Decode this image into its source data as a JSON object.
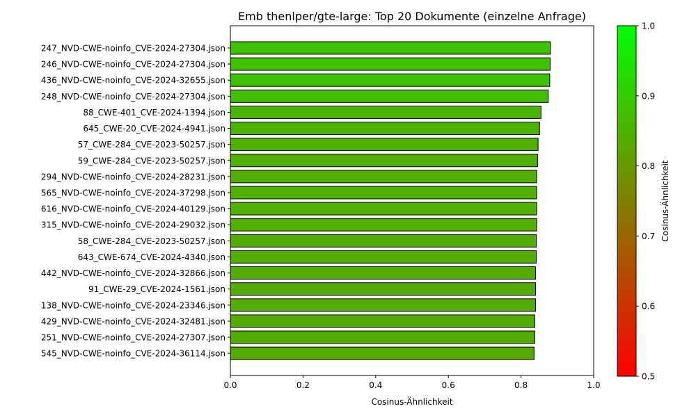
{
  "chart_data": {
    "type": "bar",
    "orientation": "horizontal",
    "title": "Emb thenlper/gte-large: Top 20 Dokumente (einzelne Anfrage)",
    "xlabel": "Cosinus-Ähnlichkeit",
    "ylabel": "",
    "xlim": [
      0,
      1
    ],
    "x_ticks": [
      "0.0",
      "0.2",
      "0.4",
      "0.6",
      "0.8",
      "1.0"
    ],
    "grid": false,
    "categories": [
      "247_NVD-CWE-noinfo_CVE-2024-27304.json",
      "246_NVD-CWE-noinfo_CVE-2024-27304.json",
      "436_NVD-CWE-noinfo_CVE-2024-32655.json",
      "248_NVD-CWE-noinfo_CVE-2024-27304.json",
      "88_CWE-401_CVE-2024-1394.json",
      "645_CWE-20_CVE-2024-4941.json",
      "57_CWE-284_CVE-2023-50257.json",
      "59_CWE-284_CVE-2023-50257.json",
      "294_NVD-CWE-noinfo_CVE-2024-28231.json",
      "565_NVD-CWE-noinfo_CVE-2024-37298.json",
      "616_NVD-CWE-noinfo_CVE-2024-40129.json",
      "315_NVD-CWE-noinfo_CVE-2024-29032.json",
      "58_CWE-284_CVE-2023-50257.json",
      "643_CWE-674_CVE-2024-4340.json",
      "442_NVD-CWE-noinfo_CVE-2024-32866.json",
      "91_CWE-29_CVE-2024-1561.json",
      "138_NVD-CWE-noinfo_CVE-2024-23346.json",
      "429_NVD-CWE-noinfo_CVE-2024-32481.json",
      "251_NVD-CWE-noinfo_CVE-2024-27307.json",
      "545_NVD-CWE-noinfo_CVE-2024-36114.json"
    ],
    "values": [
      0.881,
      0.88,
      0.879,
      0.875,
      0.855,
      0.851,
      0.847,
      0.846,
      0.843,
      0.843,
      0.843,
      0.843,
      0.842,
      0.842,
      0.84,
      0.84,
      0.84,
      0.838,
      0.838,
      0.836
    ],
    "colorbar": {
      "label": "Cosinus-Ähnlichkeit",
      "range": [
        0.5,
        1.0
      ],
      "ticks": [
        "0.5",
        "0.6",
        "0.7",
        "0.8",
        "0.9",
        "1.0"
      ],
      "color_low": "#ff0000",
      "color_high": "#00ff00"
    },
    "bar_edge_color": "#000000"
  }
}
